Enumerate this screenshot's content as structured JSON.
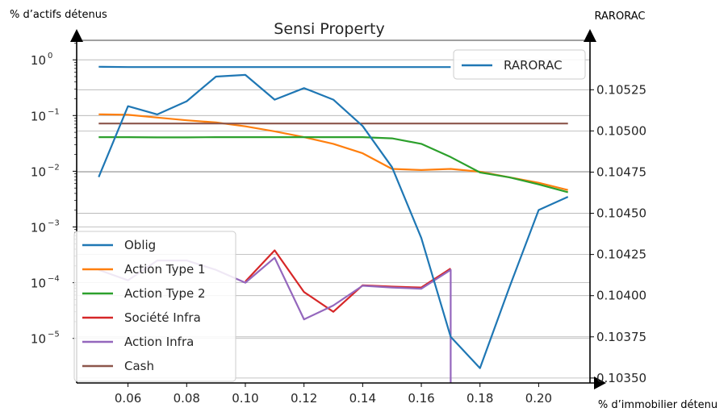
{
  "chart_data": {
    "type": "line",
    "title": "Sensi Property",
    "y_left_label": "% d’actifs détenus",
    "y_right_label": "RARORAC",
    "x_label": "% d’immobilier détenu",
    "x_ticks": [
      "0.06",
      "0.08",
      "0.10",
      "0.12",
      "0.14",
      "0.16",
      "0.18",
      "0.20"
    ],
    "x_tick_values": [
      0.06,
      0.08,
      0.1,
      0.12,
      0.14,
      0.16,
      0.18,
      0.2
    ],
    "xlim": [
      0.0425,
      0.2175
    ],
    "y_left_scale": "log",
    "y_left_ticks": [
      {
        "base": "10",
        "exp": "0",
        "value": 1
      },
      {
        "base": "10",
        "exp": "−1",
        "value": 0.1
      },
      {
        "base": "10",
        "exp": "−2",
        "value": 0.01
      },
      {
        "base": "10",
        "exp": "−3",
        "value": 0.001
      },
      {
        "base": "10",
        "exp": "−4",
        "value": 0.0001
      },
      {
        "base": "10",
        "exp": "−5",
        "value": 1e-05
      }
    ],
    "y_left_log_range": [
      -5.8,
      0.35
    ],
    "y_right_ticks": [
      "0.10350",
      "0.10375",
      "0.10400",
      "0.10425",
      "0.10450",
      "0.10475",
      "0.10500",
      "0.10525"
    ],
    "y_right_tick_values": [
      0.1035,
      0.10375,
      0.104,
      0.10425,
      0.1045,
      0.10475,
      0.105,
      0.10525
    ],
    "ylim_right": [
      0.10347,
      0.10555
    ],
    "grid": "horizontal",
    "x": [
      0.05,
      0.06,
      0.07,
      0.08,
      0.09,
      0.1,
      0.11,
      0.12,
      0.13,
      0.14,
      0.15,
      0.16,
      0.17,
      0.18,
      0.19,
      0.2,
      0.21
    ],
    "left_series": [
      {
        "name": "Oblig",
        "color": "#1f77b4",
        "values": [
          0.75,
          0.74,
          0.74,
          0.74,
          0.74,
          0.74,
          0.74,
          0.74,
          0.74,
          0.74,
          0.74,
          0.74,
          0.74,
          null,
          null,
          null,
          null
        ]
      },
      {
        "name": "Action Type 1",
        "color": "#ff7f0e",
        "values": [
          0.105,
          0.103,
          0.092,
          0.082,
          0.075,
          0.064,
          0.052,
          0.041,
          0.031,
          0.021,
          0.011,
          0.0105,
          0.011,
          0.0098,
          0.0078,
          0.0062,
          0.0046
        ]
      },
      {
        "name": "Action Type 2",
        "color": "#2ca02c",
        "values": [
          0.041,
          0.041,
          0.0405,
          0.0405,
          0.041,
          0.041,
          0.041,
          0.041,
          0.041,
          0.041,
          0.039,
          0.031,
          0.018,
          0.0095,
          0.0078,
          0.0058,
          0.0042
        ]
      },
      {
        "name": "Société Infra",
        "color": "#d62728",
        "values": [
          null,
          null,
          null,
          null,
          null,
          0.000105,
          0.00038,
          6.8e-05,
          3e-05,
          9e-05,
          8.5e-05,
          8.2e-05,
          0.00018,
          null,
          null,
          null,
          null
        ]
      },
      {
        "name": "Action Infra",
        "color": "#9467bd",
        "values": [
          0.00017,
          0.00011,
          0.00025,
          0.00025,
          0.00017,
          0.0001,
          0.00028,
          2.2e-05,
          3.9e-05,
          8.8e-05,
          8.2e-05,
          7.8e-05,
          0.00017,
          null,
          null,
          null,
          null
        ],
        "drop_to_bottom_at": 0.17
      },
      {
        "name": "Cash",
        "color": "#8c564b",
        "values": [
          0.072,
          0.072,
          0.072,
          0.072,
          0.072,
          0.072,
          0.072,
          0.072,
          0.072,
          0.072,
          0.072,
          0.072,
          0.072,
          0.072,
          0.072,
          0.072,
          0.072
        ]
      }
    ],
    "right_series": [
      {
        "name": "RARORAC",
        "color": "#1f77b4",
        "values": [
          0.10472,
          0.10515,
          0.1051,
          0.10518,
          0.10533,
          0.10534,
          0.10519,
          0.10526,
          0.10519,
          0.10503,
          0.10478,
          0.10435,
          0.10375,
          0.10356,
          0.10405,
          0.10452,
          0.1046
        ]
      }
    ],
    "left_legend": {
      "placement": "lower-left",
      "entries": [
        "Oblig",
        "Action Type 1",
        "Action Type 2",
        "Société Infra",
        "Action Infra",
        "Cash"
      ]
    },
    "right_legend": {
      "placement": "upper-right",
      "entries": [
        "RARORAC"
      ]
    }
  }
}
